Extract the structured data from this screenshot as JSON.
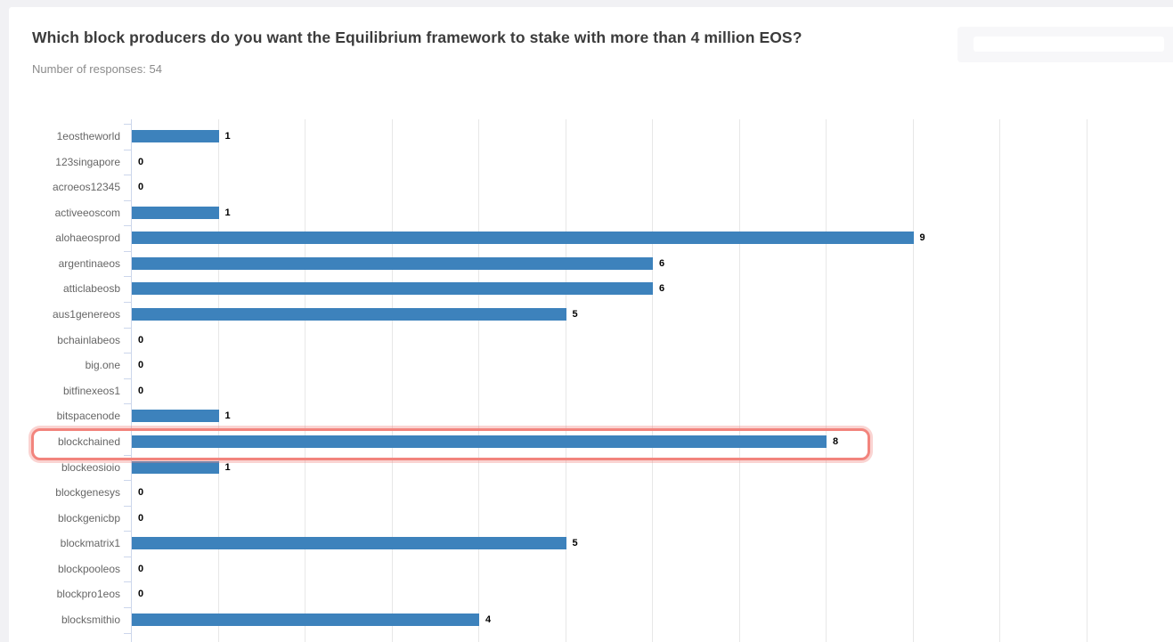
{
  "page": {
    "title": "Which block producers do you want the Equilibrium framework to stake with more than 4 million EOS?",
    "subtitle": "Number of responses: 54",
    "responses_count": 54
  },
  "faded_button": {
    "visible": true,
    "label": ""
  },
  "chart_data": {
    "type": "bar",
    "orientation": "horizontal",
    "title": "Which block producers do you want the Equilibrium framework to stake with more than 4 million EOS?",
    "subtitle": "Number of responses: 54",
    "categories": [
      "1eostheworld",
      "123singapore",
      "acroeos12345",
      "activeeoscom",
      "alohaeosprod",
      "argentinaeos",
      "atticlabeosb",
      "aus1genereos",
      "bchainlabeos",
      "big.one",
      "bitfinexeos1",
      "bitspacenode",
      "blockchained",
      "blockeosioio",
      "blockgenesys",
      "blockgenicbp",
      "blockmatrix1",
      "blockpooleos",
      "blockpro1eos",
      "blocksmithio"
    ],
    "values": [
      1,
      0,
      0,
      1,
      9,
      6,
      6,
      5,
      0,
      0,
      0,
      1,
      8,
      1,
      0,
      0,
      5,
      0,
      0,
      4
    ],
    "data_labels": true,
    "highlighted_category": "blockchained",
    "highlighted_index": 12,
    "xlim": [
      0,
      11
    ],
    "grid": true,
    "legend": "none",
    "xlabel": "",
    "ylabel": "",
    "colors": {
      "bar": "#3d82bc",
      "highlight_border": "#f2847d",
      "axis": "#ccd6eb",
      "gridline": "#e7e7e7",
      "category_label": "#666666",
      "value_label": "#000000",
      "title": "#3c3c3c",
      "subtitle": "#8b8b8b",
      "card_bg": "#ffffff",
      "page_bg": "#f1f1f4"
    }
  }
}
